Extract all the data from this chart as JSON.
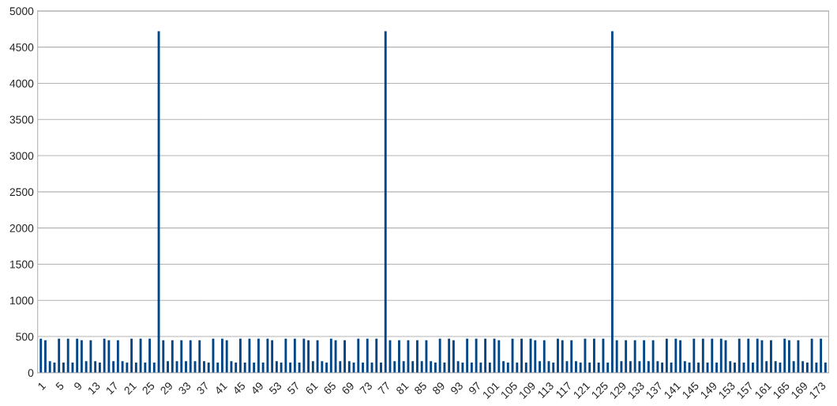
{
  "chart_data": {
    "type": "bar",
    "categories": [
      "1",
      null,
      null,
      null,
      "5",
      null,
      null,
      null,
      "9",
      null,
      null,
      null,
      "13",
      null,
      null,
      null,
      "17",
      null,
      null,
      null,
      "21",
      null,
      null,
      null,
      "25",
      null,
      null,
      null,
      "29",
      null,
      null,
      null,
      "33",
      null,
      null,
      null,
      "37",
      null,
      null,
      null,
      "41",
      null,
      null,
      null,
      "45",
      null,
      null,
      null,
      "49",
      null,
      null,
      null,
      "53",
      null,
      null,
      null,
      "57",
      null,
      null,
      null,
      "61",
      null,
      null,
      null,
      "65",
      null,
      null,
      null,
      "69",
      null,
      null,
      null,
      "73",
      null,
      null,
      null,
      "77",
      null,
      null,
      null,
      "81",
      null,
      null,
      null,
      "85",
      null,
      null,
      null,
      "89",
      null,
      null,
      null,
      "93",
      null,
      null,
      null,
      "97",
      null,
      null,
      null,
      "101",
      null,
      null,
      null,
      "105",
      null,
      null,
      null,
      "109",
      null,
      null,
      null,
      "113",
      null,
      null,
      null,
      "117",
      null,
      null,
      null,
      "121",
      null,
      null,
      null,
      "125",
      null,
      null,
      null,
      "129",
      null,
      null,
      null,
      "133",
      null,
      null,
      null,
      "137",
      null,
      null,
      null,
      "141",
      null,
      null,
      null,
      "145",
      null,
      null,
      null,
      "149",
      null,
      null,
      null,
      "153",
      null,
      null,
      null,
      "157",
      null,
      null,
      null,
      "161",
      null,
      null,
      null,
      "165",
      null,
      null,
      null,
      "169",
      null,
      null,
      null,
      "173",
      null
    ],
    "values": [
      470,
      450,
      160,
      140,
      470,
      140,
      470,
      140,
      470,
      450,
      160,
      450,
      160,
      140,
      470,
      450,
      160,
      450,
      160,
      140,
      470,
      140,
      470,
      140,
      470,
      140,
      4720,
      450,
      160,
      450,
      160,
      450,
      160,
      450,
      160,
      450,
      160,
      140,
      470,
      140,
      470,
      450,
      160,
      140,
      470,
      140,
      470,
      140,
      470,
      140,
      470,
      450,
      160,
      140,
      470,
      140,
      470,
      140,
      470,
      450,
      160,
      450,
      160,
      140,
      470,
      450,
      160,
      450,
      160,
      140,
      470,
      140,
      470,
      140,
      470,
      140,
      4720,
      450,
      160,
      450,
      160,
      450,
      160,
      450,
      160,
      450,
      160,
      140,
      470,
      140,
      470,
      450,
      160,
      140,
      470,
      140,
      470,
      140,
      470,
      140,
      470,
      450,
      160,
      140,
      470,
      140,
      470,
      140,
      470,
      450,
      160,
      450,
      160,
      140,
      470,
      450,
      160,
      450,
      160,
      140,
      470,
      140,
      470,
      140,
      470,
      140,
      4720,
      450,
      160,
      450,
      160,
      450,
      160,
      450,
      160,
      450,
      160,
      140,
      470,
      140,
      470,
      450,
      160,
      140,
      470,
      140,
      470,
      140,
      470,
      140,
      470,
      450,
      160,
      140,
      470,
      140,
      470,
      140,
      470,
      450,
      160,
      450,
      160,
      140,
      470,
      450,
      160,
      450,
      160,
      140,
      470,
      140,
      470,
      140
    ],
    "color": "#004586",
    "ylim": [
      0,
      5000
    ],
    "yticks": [
      0,
      500,
      1000,
      1500,
      2000,
      2500,
      3000,
      3500,
      4000,
      4500,
      5000
    ],
    "grid": "y",
    "legend": false
  }
}
